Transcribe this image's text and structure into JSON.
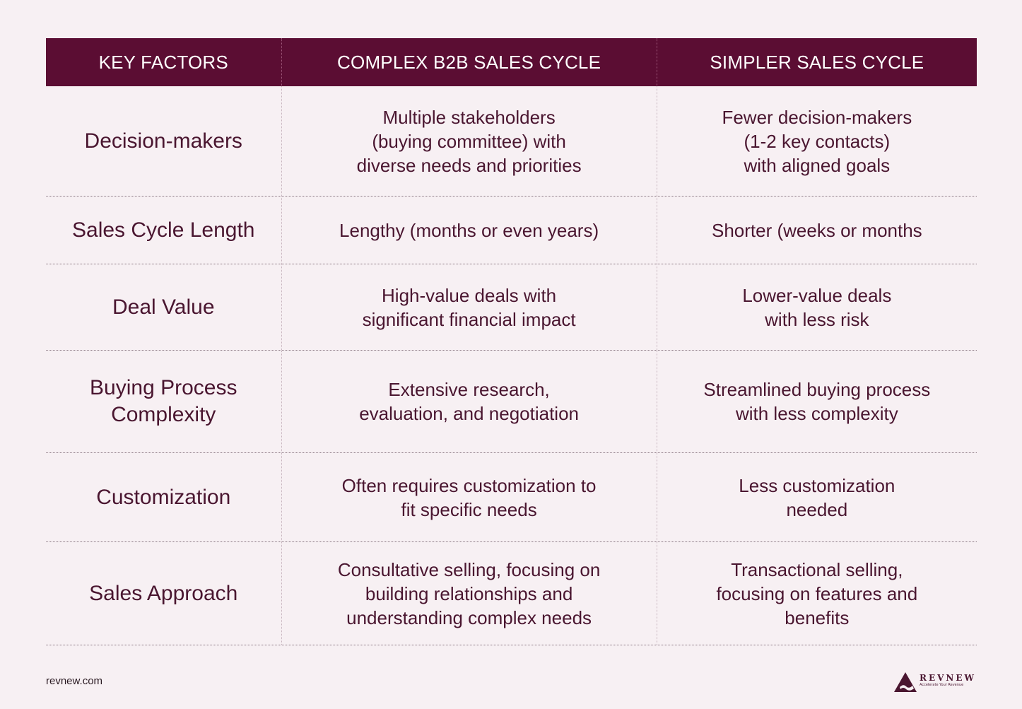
{
  "header": {
    "col1": "KEY FACTORS",
    "col2": "COMPLEX B2B SALES CYCLE",
    "col3": "SIMPLER SALES CYCLE"
  },
  "rows": [
    {
      "factor": "Decision-makers",
      "complex": "Multiple stakeholders\n(buying committee) with\ndiverse needs and priorities",
      "simple": "Fewer decision-makers\n(1-2 key contacts)\nwith aligned goals"
    },
    {
      "factor": "Sales Cycle Length",
      "complex": "Lengthy (months or even years)",
      "simple": "Shorter (weeks or months"
    },
    {
      "factor": "Deal Value",
      "complex": "High-value deals with\nsignificant financial impact",
      "simple": "Lower-value deals\nwith less risk"
    },
    {
      "factor": "Buying Process\nComplexity",
      "complex": "Extensive research,\nevaluation, and negotiation",
      "simple": "Streamlined buying process\nwith less complexity"
    },
    {
      "factor": "Customization",
      "complex": "Often requires customization to\nfit specific needs",
      "simple": "Less customization\nneeded"
    },
    {
      "factor": "Sales Approach",
      "complex": "Consultative selling, focusing on\nbuilding relationships and\nunderstanding complex needs",
      "simple": "Transactional selling,\nfocusing on features and\nbenefits"
    }
  ],
  "footer": {
    "site": "revnew.com",
    "logo_name": "REVNEW",
    "logo_tagline": "Accelerate Your Revenue"
  },
  "colors": {
    "header_bg": "#5b0d33",
    "page_bg": "#f7f0f3",
    "text": "#4a1630"
  }
}
